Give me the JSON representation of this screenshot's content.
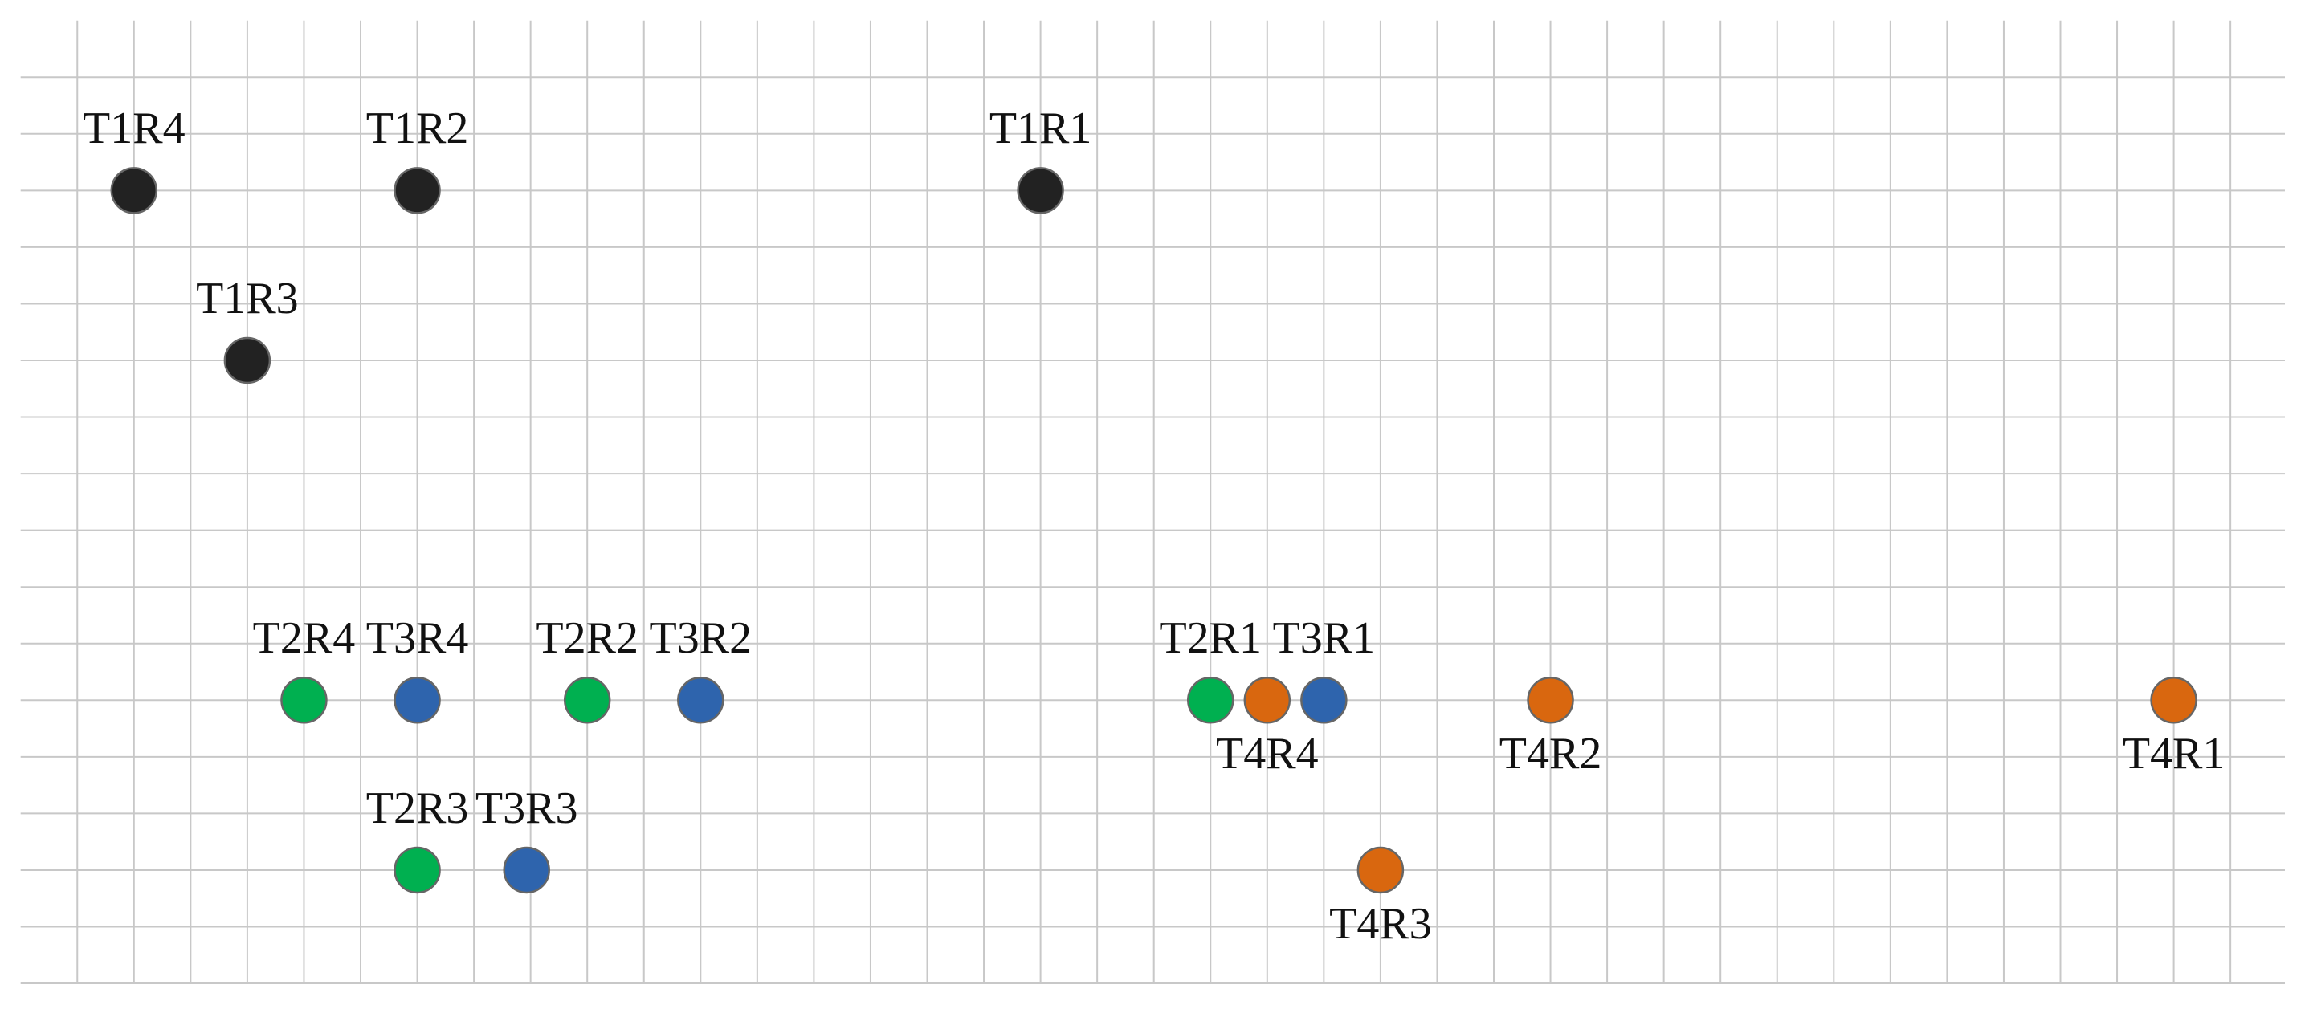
{
  "nodes": [
    {
      "label": "T1R4"
    },
    {
      "label": "T1R2"
    },
    {
      "label": "T1R1"
    },
    {
      "label": "T1R3"
    },
    {
      "label": "T2R4"
    },
    {
      "label": "T3R4"
    },
    {
      "label": "T2R2"
    },
    {
      "label": "T3R2"
    },
    {
      "label": "T2R1"
    },
    {
      "label": "T3R1"
    },
    {
      "label": "T4R4"
    },
    {
      "label": "T4R2"
    },
    {
      "label": "T4R1"
    },
    {
      "label": "T2R3"
    },
    {
      "label": "T3R3"
    },
    {
      "label": "T4R3"
    }
  ]
}
